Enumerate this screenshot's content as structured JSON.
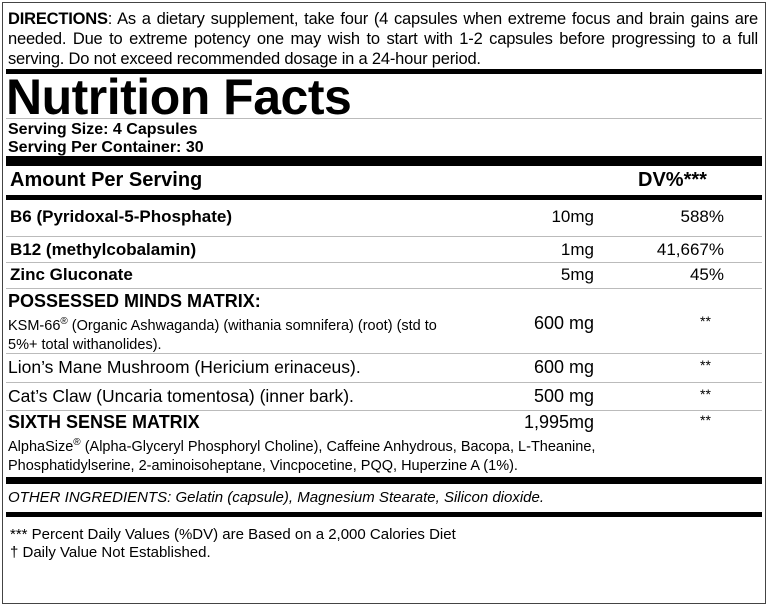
{
  "directions": {
    "label": "DIRECTIONS",
    "text": ": As a dietary supplement, take four (4 capsules when extreme focus and brain gains are needed. Due to extreme potency one may wish to start with 1-2 capsules before progressing to a full serving. Do not exceed recommended dosage in a 24-hour period."
  },
  "title": "Nutrition Facts",
  "serving_size": "Serving Size: 4 Capsules",
  "servings_per_container": "Serving Per Container: 30",
  "table_header": {
    "amount": "Amount Per Serving",
    "dv": "DV%***"
  },
  "vitamins": [
    {
      "name": "B6 (Pyridoxal-5-Phosphate)",
      "amount": "10mg",
      "dv": "588%"
    },
    {
      "name": "B12 (methylcobalamin)",
      "amount": "1mg",
      "dv": "41,667%"
    },
    {
      "name": "Zinc Gluconate",
      "amount": "5mg",
      "dv": "45%"
    }
  ],
  "possessed_matrix": {
    "title": "POSSESSED MINDS MATRIX:",
    "items": [
      {
        "name_line1": "KSM-66",
        "reg": "®",
        "name_line1_rest": " (Organic Ashwaganda) (withania somnifera) (root) (std to",
        "name_line2": "5%+ total withanolides).",
        "amount": "600 mg",
        "dv": "**"
      },
      {
        "name": "Lion’s Mane Mushroom (Hericium erinaceus).",
        "amount": "600 mg",
        "dv": "**"
      },
      {
        "name": "Cat’s Claw (Uncaria tomentosa) (inner bark).",
        "amount": "500 mg",
        "dv": "**"
      }
    ]
  },
  "sixth_sense": {
    "title": "SIXTH SENSE MATRIX",
    "amount": "1,995mg",
    "dv": "**",
    "line1_a": "AlphaSize",
    "reg": "®",
    "line1_b": " (Alpha-Glyceryl Phosphoryl Choline), Caffeine Anhydrous, Bacopa, L-Theanine,",
    "line2": "Phosphatidylserine, 2-aminoisoheptane, Vincpocetine, PQQ, Huperzine A (1%)."
  },
  "other_ingredients": "OTHER INGREDIENTS: Gelatin (capsule), Magnesium Stearate, Silicon dioxide.",
  "footnotes": [
    "*** Percent Daily Values  (%DV) are Based on a 2,000 Calories Diet",
    "† Daily Value Not Established."
  ]
}
